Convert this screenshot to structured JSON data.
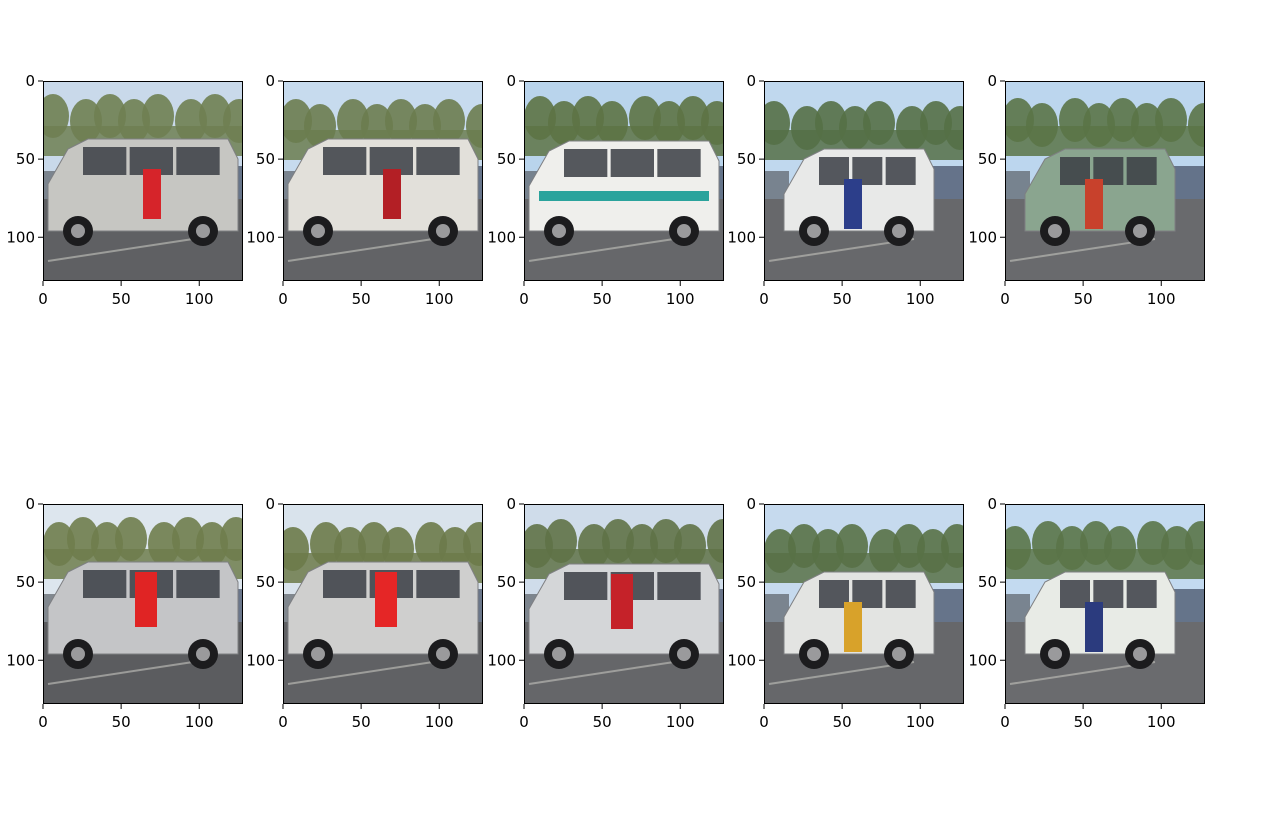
{
  "figure": {
    "rows": 2,
    "cols": 5,
    "image_extent": [
      0,
      128
    ],
    "axes": {
      "x_ticks": [
        0,
        50,
        100
      ],
      "y_ticks": [
        0,
        50,
        100
      ],
      "x_tick_labels": [
        "0",
        "50",
        "100"
      ],
      "y_tick_labels": [
        "0",
        "50",
        "100"
      ]
    },
    "colors": {
      "frame": "#000000",
      "text": "#000000",
      "background": "#ffffff"
    },
    "panels": [
      {
        "row": 0,
        "col": 0,
        "subject": "silver minivan rear-side view",
        "sky": "#c9d9ea",
        "trees": "#6f7f52",
        "vehicle": "#c6c6c2",
        "accent": "#d6242a",
        "ground": "#5f6063"
      },
      {
        "row": 0,
        "col": 1,
        "subject": "white minivan side view",
        "sky": "#c7dbee",
        "trees": "#6b7c4f",
        "vehicle": "#e2e0da",
        "accent": "#b31f25",
        "ground": "#626366"
      },
      {
        "row": 0,
        "col": 2,
        "subject": "white van with teal stripe",
        "sky": "#b9d4ec",
        "trees": "#5d7345",
        "vehicle": "#efefec",
        "accent": "#2aa39c",
        "ground": "#66676a"
      },
      {
        "row": 0,
        "col": 3,
        "subject": "white box truck",
        "sky": "#c0d8ee",
        "trees": "#557046",
        "vehicle": "#e8e9e8",
        "accent": "#2c3e8a",
        "ground": "#67686b"
      },
      {
        "row": 0,
        "col": 4,
        "subject": "green utility truck",
        "sky": "#bcd6ee",
        "trees": "#5a7447",
        "vehicle": "#8aa58f",
        "accent": "#c8412c",
        "ground": "#696a6d"
      },
      {
        "row": 1,
        "col": 0,
        "subject": "silver hatchback rear view",
        "sky": "#dde6ee",
        "trees": "#6f7d4c",
        "vehicle": "#c4c5c7",
        "accent": "#e02424",
        "ground": "#5b5c5f"
      },
      {
        "row": 1,
        "col": 1,
        "subject": "silver wagon rear view",
        "sky": "#d9e3ec",
        "trees": "#6c7a4a",
        "vehicle": "#cfcfce",
        "accent": "#e52626",
        "ground": "#606164"
      },
      {
        "row": 1,
        "col": 2,
        "subject": "silver van rear view",
        "sky": "#cfdcea",
        "trees": "#5f7247",
        "vehicle": "#d4d6d8",
        "accent": "#c52229",
        "ground": "#656669"
      },
      {
        "row": 1,
        "col": 3,
        "subject": "white bus rear view",
        "sky": "#c6daee",
        "trees": "#587146",
        "vehicle": "#e3e4e2",
        "accent": "#d8a22a",
        "ground": "#66676a"
      },
      {
        "row": 1,
        "col": 4,
        "subject": "white delivery truck",
        "sky": "#c3daf0",
        "trees": "#5a7448",
        "vehicle": "#e8ebe6",
        "accent": "#2b3b7e",
        "ground": "#6a6b6e"
      }
    ]
  }
}
